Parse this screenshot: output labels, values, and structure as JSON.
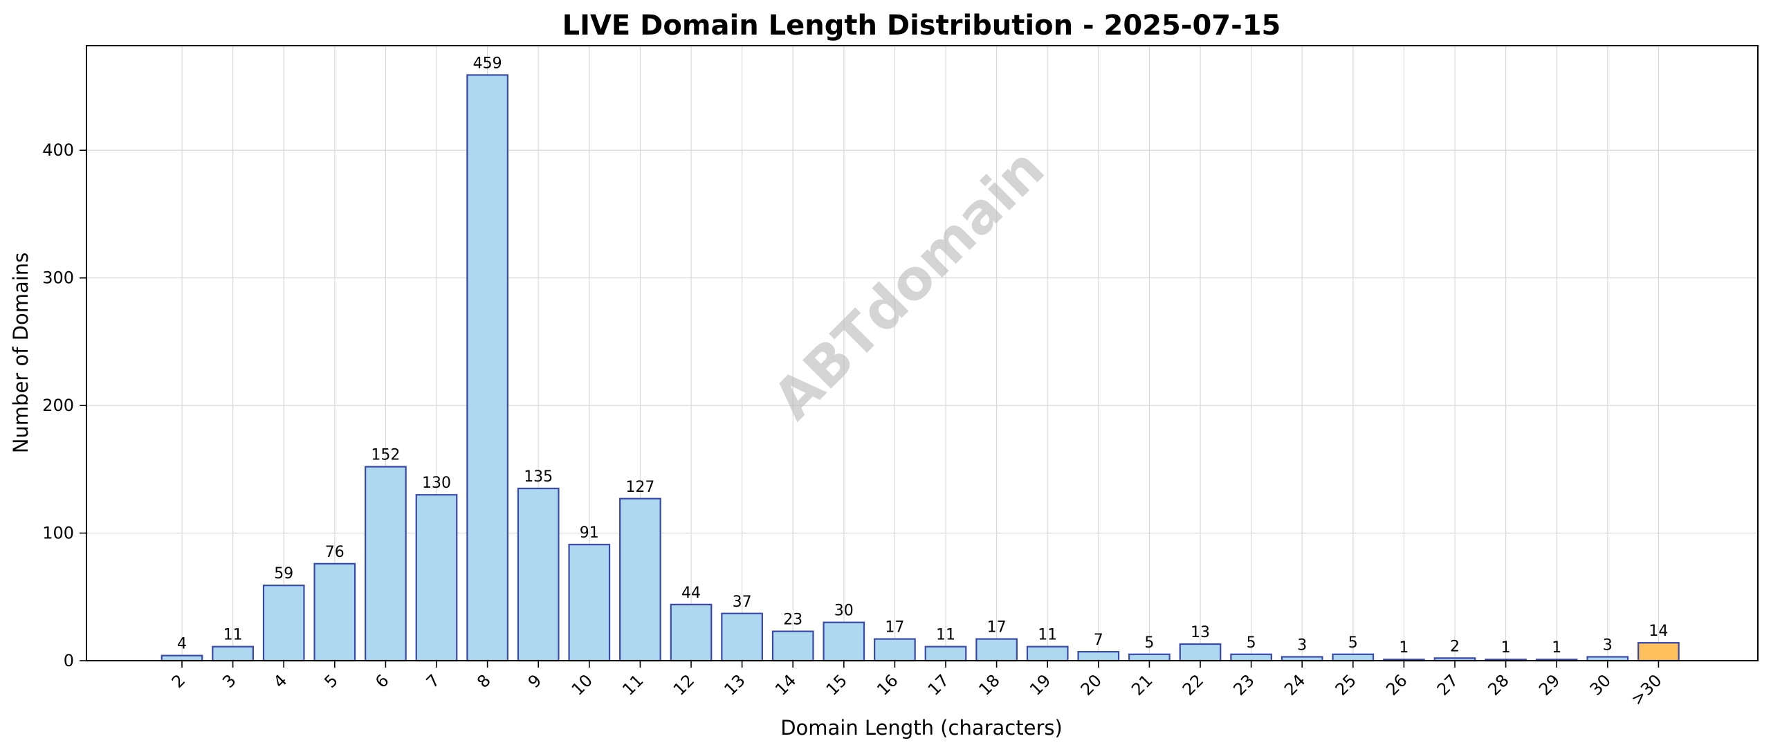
{
  "chart_data": {
    "type": "bar",
    "title": "LIVE Domain Length Distribution - 2025-07-15",
    "xlabel": "Domain Length (characters)",
    "ylabel": "Number of Domains",
    "watermark": "ABTdomain",
    "categories": [
      "2",
      "3",
      "4",
      "5",
      "6",
      "7",
      "8",
      "9",
      "10",
      "11",
      "12",
      "13",
      "14",
      "15",
      "16",
      "17",
      "18",
      "19",
      "20",
      "21",
      "22",
      "23",
      "24",
      "25",
      "26",
      "27",
      "28",
      "29",
      "30",
      ">30"
    ],
    "values": [
      4,
      11,
      59,
      76,
      152,
      130,
      459,
      135,
      91,
      127,
      44,
      37,
      23,
      30,
      17,
      11,
      17,
      11,
      7,
      5,
      13,
      5,
      3,
      5,
      1,
      2,
      1,
      1,
      3,
      14
    ],
    "ylim": [
      0,
      482
    ],
    "yticks": [
      0,
      100,
      200,
      300,
      400
    ],
    "grid": true,
    "colors": {
      "bar_fill": "#add8ef",
      "bar_edge": "#3949ab",
      "highlight_fill": "#ffbf5a",
      "highlight_edge": "#3949ab"
    },
    "highlight_category": ">30"
  }
}
